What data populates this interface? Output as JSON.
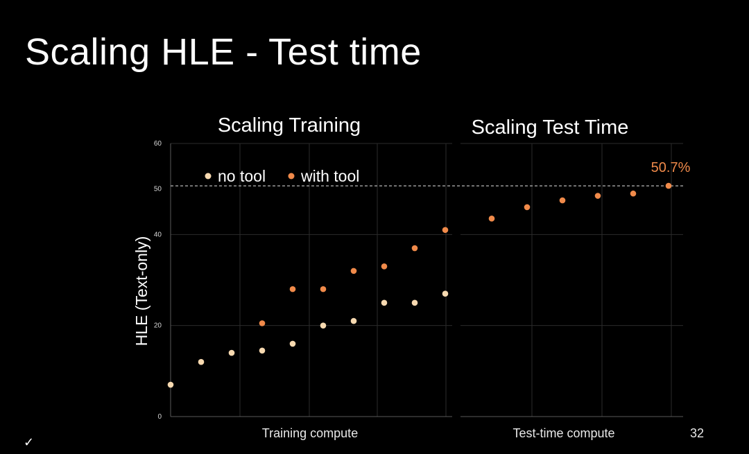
{
  "slide": {
    "title": "Scaling HLE - Test time",
    "corner_mark": "✓"
  },
  "chart_data": {
    "type": "scatter",
    "ylabel": "HLE (Text-only)",
    "ylim": [
      0,
      60
    ],
    "yticks": [
      0,
      20,
      40,
      50,
      60
    ],
    "grid": true,
    "reference_line": {
      "y": 50.7,
      "style": "dashed"
    },
    "legend": {
      "position": "top-left"
    },
    "colors": {
      "no_tool": "#f7d9b0",
      "with_tool": "#f08a4a",
      "highlight": "#f08a4a",
      "grid": "#2b2b2b"
    },
    "panels": [
      {
        "title": "Scaling Training",
        "xlabel": "Training compute",
        "x": [
          1,
          2,
          3,
          4,
          5,
          6,
          7,
          8,
          9,
          10
        ],
        "series": [
          {
            "name": "no tool",
            "key": "no_tool",
            "x": [
              1,
              2,
              3,
              4,
              5,
              6,
              7,
              8,
              9,
              10
            ],
            "values": [
              7,
              12,
              14,
              14.5,
              16,
              20,
              21,
              25,
              25,
              27
            ]
          },
          {
            "name": "with tool",
            "key": "with_tool",
            "x": [
              4,
              5,
              6,
              7,
              8,
              9,
              10
            ],
            "values": [
              20.5,
              28,
              28,
              32,
              33,
              37,
              41
            ]
          }
        ]
      },
      {
        "title": "Scaling Test Time",
        "xlabel": "Test-time compute",
        "tick_labels": [
          {
            "x": 7,
            "label": "32"
          }
        ],
        "series": [
          {
            "name": "with tool",
            "key": "with_tool",
            "x": [
              1,
              2,
              3,
              4,
              5,
              6
            ],
            "values": [
              43.5,
              46,
              47.5,
              48.5,
              49,
              50.7
            ]
          }
        ],
        "annotations": [
          {
            "text": "50.7%",
            "x": 6,
            "y": 50.7
          }
        ]
      }
    ]
  }
}
